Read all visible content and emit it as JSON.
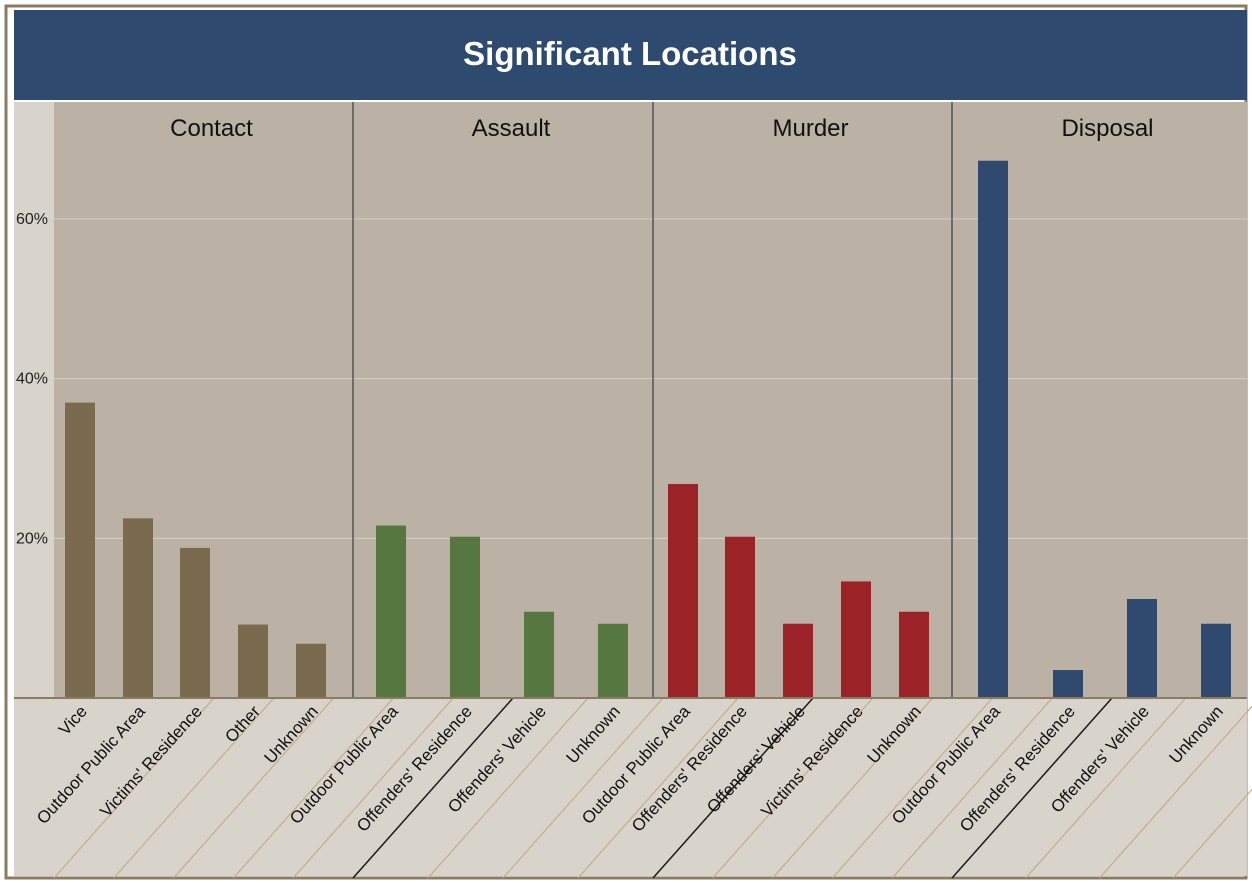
{
  "chart_data": {
    "type": "bar",
    "title": "Significant Locations",
    "ylim": [
      0,
      70
    ],
    "yticks": [
      20,
      40,
      60
    ],
    "ytick_labels": [
      "20%",
      "40%",
      "60%"
    ],
    "grid": true,
    "panels": [
      {
        "name": "Contact",
        "color": "#7a6a4e",
        "categories": [
          "Vice",
          "Outdoor Public Area",
          "Victims' Residence",
          "Other",
          "Unknown"
        ],
        "values": [
          37,
          22.5,
          18.8,
          9.2,
          6.8
        ]
      },
      {
        "name": "Assault",
        "color": "#56773f",
        "categories": [
          "Outdoor Public Area",
          "Offenders' Residence",
          "Offenders' Vehicle",
          "Unknown"
        ],
        "values": [
          21.6,
          20.2,
          10.8,
          9.3
        ]
      },
      {
        "name": "Murder",
        "color": "#9b2226",
        "categories": [
          "Outdoor Public Area",
          "Offenders' Residence",
          "Offenders' Vehicle",
          "Victims' Residence",
          "Unknown"
        ],
        "values": [
          26.8,
          20.2,
          9.3,
          14.6,
          10.8
        ]
      },
      {
        "name": "Disposal",
        "color": "#2f4a6e",
        "categories": [
          "Outdoor Public Area",
          "Offenders' Residence",
          "Offenders' Vehicle",
          "Unknown"
        ],
        "values": [
          67.3,
          3.5,
          12.4,
          9.3
        ]
      }
    ]
  }
}
